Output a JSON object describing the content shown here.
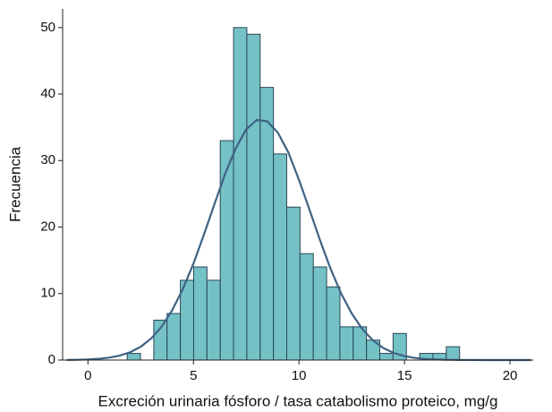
{
  "chart_data": {
    "type": "histogram",
    "x_label": "Excreción urinaria fósforo / tasa catabolismo proteico, mg/g",
    "y_label": "Frecuencia",
    "bins": [
      1.86,
      2.49,
      3.12,
      3.75,
      4.38,
      5.01,
      5.64,
      6.27,
      6.9,
      7.53,
      8.16,
      8.79,
      9.42,
      10.05,
      10.68,
      11.31,
      11.94,
      12.57,
      13.2,
      13.83,
      14.46,
      15.09,
      15.72,
      16.35,
      16.98,
      17.61
    ],
    "counts": [
      1,
      0,
      6,
      7,
      12,
      14,
      12,
      33,
      50,
      49,
      41,
      31,
      23,
      16,
      14,
      11,
      5,
      5,
      3,
      1,
      4,
      0,
      1,
      1,
      2
    ],
    "color": "#74c1c6",
    "edge_color": "#2b4656",
    "curve": {
      "color": "#3f6283",
      "x": [
        -1,
        -0.5,
        0,
        0.5,
        1,
        1.5,
        2,
        2.5,
        3,
        3.5,
        4,
        4.5,
        5,
        5.5,
        6,
        6.5,
        7,
        7.5,
        8,
        8.5,
        9,
        9.5,
        10,
        10.5,
        11,
        11.5,
        12,
        12.5,
        13,
        13.5,
        14,
        14.5,
        15,
        15.5,
        16,
        16.5,
        17,
        17.5,
        18,
        19,
        20,
        21
      ],
      "values": [
        0.02,
        0.04,
        0.09,
        0.18,
        0.36,
        0.66,
        1.18,
        2.0,
        3.25,
        5.06,
        7.54,
        10.7,
        14.5,
        18.9,
        23.5,
        28.0,
        31.8,
        34.7,
        36.1,
        35.9,
        34.2,
        31.2,
        27.1,
        22.6,
        18.0,
        13.7,
        10.0,
        7.0,
        4.67,
        2.97,
        1.8,
        1.06,
        0.59,
        0.31,
        0.16,
        0.08,
        0.04,
        0.02,
        0.01,
        0,
        0,
        0
      ]
    },
    "xlim": [
      -1.2,
      21.1
    ],
    "ylim": [
      0,
      52.8
    ],
    "xticks": [
      0,
      5,
      10,
      15,
      20
    ],
    "yticks": [
      0,
      10,
      20,
      30,
      40,
      50
    ]
  }
}
